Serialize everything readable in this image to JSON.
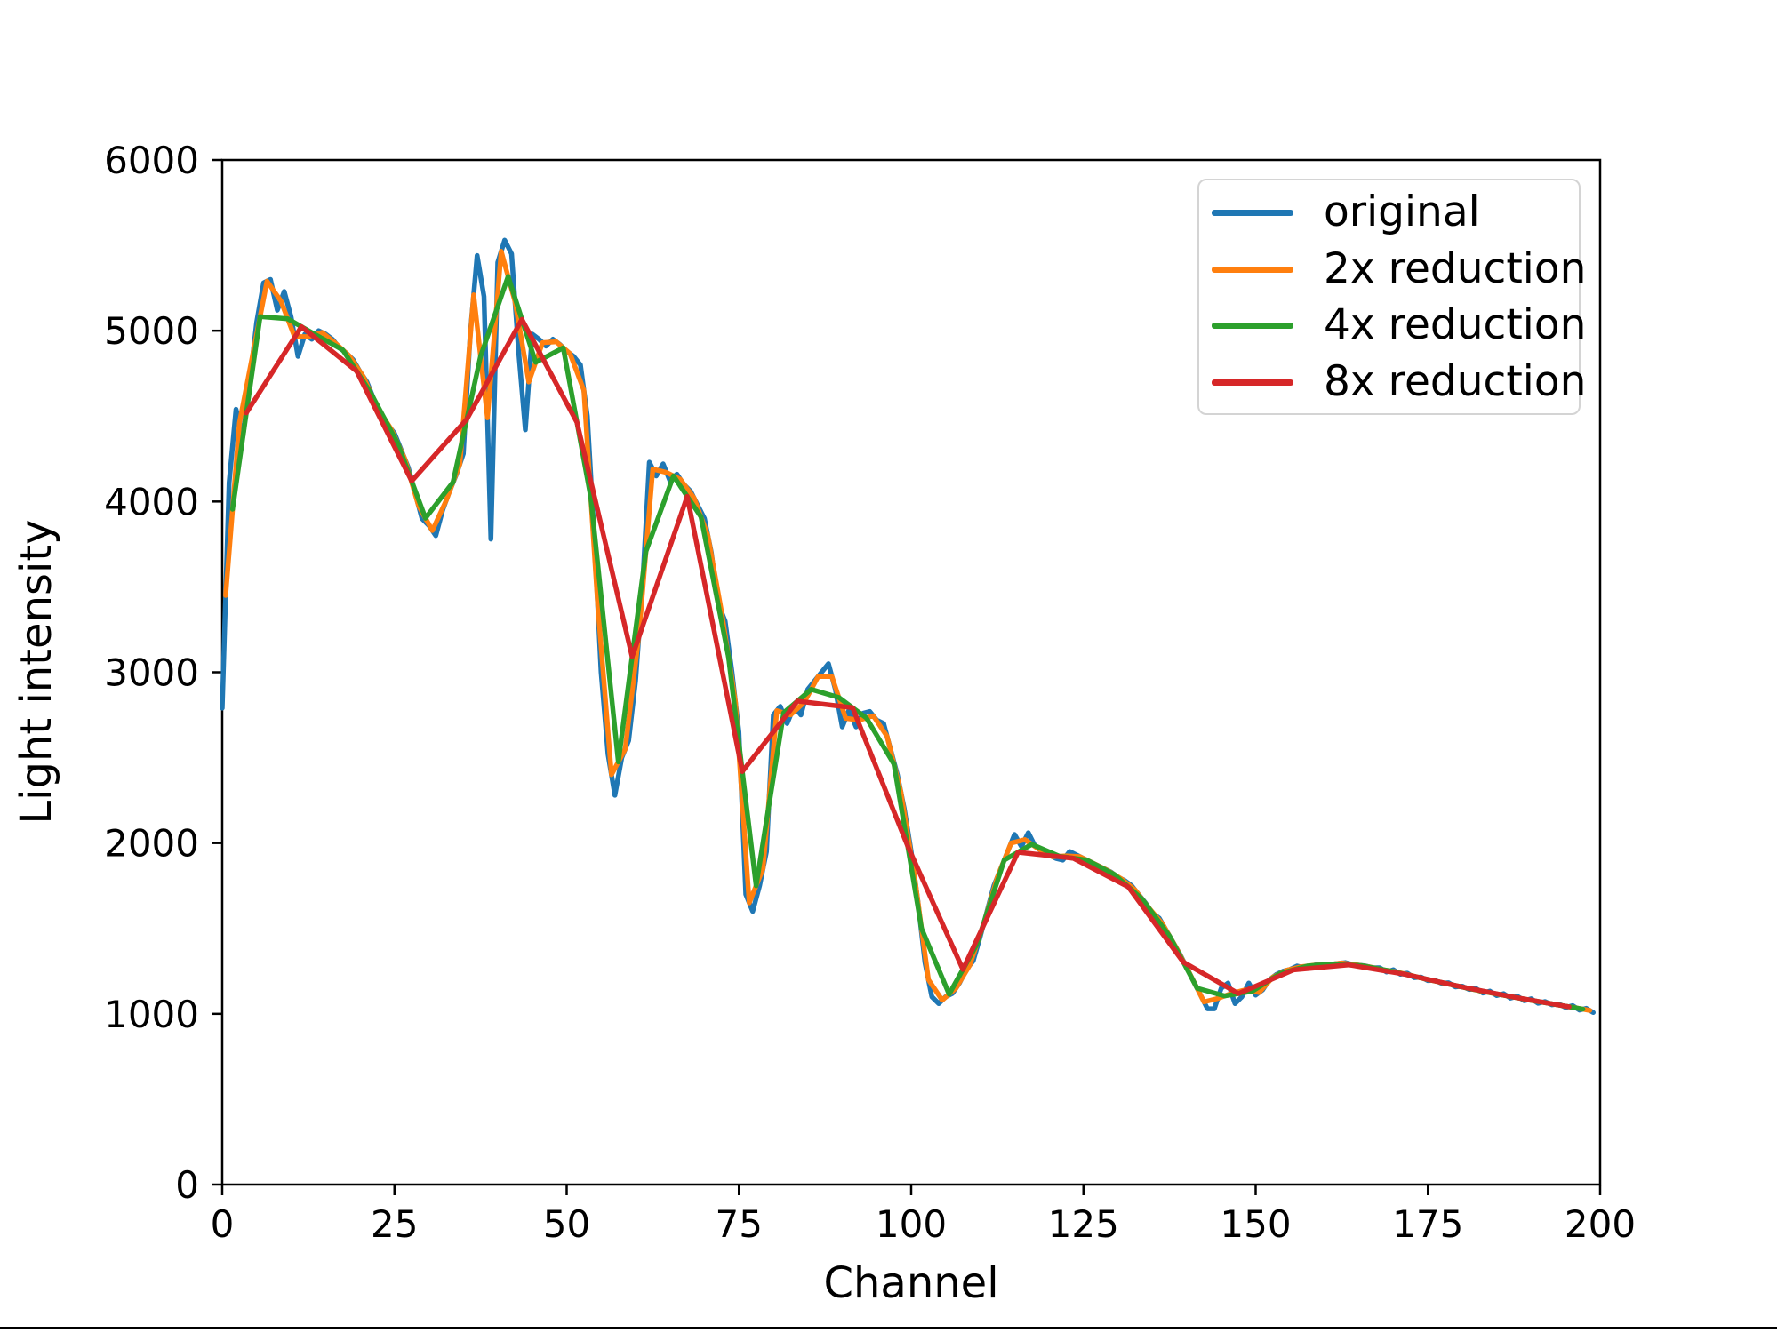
{
  "figure": {
    "background": "#ffffff"
  },
  "chart_data": {
    "type": "line",
    "title": "",
    "xlabel": "Channel",
    "ylabel": "Light intensity",
    "xlim": [
      0,
      200
    ],
    "ylim": [
      0,
      6000
    ],
    "xticks": [
      0,
      25,
      50,
      75,
      100,
      125,
      150,
      175,
      200
    ],
    "yticks": [
      0,
      1000,
      2000,
      3000,
      4000,
      5000,
      6000
    ],
    "grid": false,
    "legend_position": "upper right",
    "series": [
      {
        "name": "original",
        "color": "#1f77b4",
        "x_start": 0,
        "x_step": 1,
        "values": [
          2790,
          4110,
          4540,
          4380,
          4700,
          5050,
          5280,
          5300,
          5120,
          5230,
          5080,
          4850,
          4980,
          4950,
          5000,
          4980,
          4950,
          4900,
          4870,
          4830,
          4760,
          4700,
          4600,
          4500,
          4450,
          4400,
          4300,
          4200,
          4050,
          3900,
          3860,
          3800,
          3950,
          4060,
          4160,
          4280,
          4980,
          5440,
          5200,
          3780,
          5400,
          5530,
          5450,
          4890,
          4420,
          4980,
          4950,
          4910,
          4950,
          4920,
          4880,
          4850,
          4800,
          4500,
          3800,
          3000,
          2520,
          2280,
          2500,
          2600,
          2950,
          3500,
          4230,
          4150,
          4220,
          4120,
          4160,
          4100,
          4060,
          3980,
          3900,
          3700,
          3400,
          3300,
          3000,
          2650,
          1700,
          1600,
          1750,
          1950,
          2750,
          2800,
          2700,
          2800,
          2750,
          2900,
          2950,
          3000,
          3050,
          2900,
          2680,
          2780,
          2680,
          2760,
          2770,
          2720,
          2700,
          2550,
          2400,
          2200,
          1950,
          1650,
          1300,
          1100,
          1060,
          1100,
          1120,
          1180,
          1260,
          1310,
          1450,
          1600,
          1750,
          1850,
          1950,
          2050,
          1980,
          2060,
          1980,
          1950,
          1930,
          1910,
          1900,
          1950,
          1930,
          1910,
          1890,
          1870,
          1850,
          1830,
          1800,
          1780,
          1750,
          1700,
          1650,
          1590,
          1560,
          1490,
          1420,
          1350,
          1270,
          1190,
          1110,
          1030,
          1030,
          1150,
          1180,
          1060,
          1100,
          1180,
          1110,
          1140,
          1200,
          1230,
          1250,
          1260,
          1280,
          1270,
          1280,
          1290,
          1285,
          1290,
          1295,
          1300,
          1290,
          1285,
          1280,
          1270,
          1270,
          1245,
          1258,
          1232,
          1238,
          1212,
          1215,
          1195,
          1196,
          1179,
          1182,
          1158,
          1162,
          1143,
          1148,
          1122,
          1133,
          1107,
          1118,
          1092,
          1103,
          1077,
          1088,
          1062,
          1072,
          1053,
          1058,
          1037,
          1048,
          1022,
          1032,
          1008
        ]
      },
      {
        "name": "2x reduction",
        "color": "#ff7f0e",
        "x_start": 0.5,
        "x_step": 2,
        "values": [
          3450,
          4460,
          4875,
          5290,
          5175,
          4965,
          4965,
          4990,
          4925,
          4850,
          4730,
          4550,
          4425,
          4250,
          3975,
          3830,
          4005,
          4220,
          5210,
          4490,
          5465,
          5170,
          4700,
          4930,
          4935,
          4865,
          4650,
          3400,
          2400,
          2550,
          3225,
          4190,
          4170,
          4130,
          4020,
          3800,
          3350,
          2825,
          1650,
          1850,
          2775,
          2750,
          2825,
          2975,
          2975,
          2730,
          2720,
          2745,
          2625,
          2300,
          1800,
          1200,
          1080,
          1150,
          1285,
          1525,
          1800,
          2000,
          2020,
          1965,
          1920,
          1925,
          1920,
          1880,
          1840,
          1790,
          1725,
          1620,
          1525,
          1385,
          1230,
          1070,
          1090,
          1120,
          1140,
          1125,
          1215,
          1255,
          1275,
          1285,
          1287.5,
          1297.5,
          1287.5,
          1275,
          1257.5,
          1245,
          1225,
          1205,
          1187.5,
          1170,
          1152.5,
          1135,
          1120,
          1105,
          1090,
          1075,
          1062.5,
          1047.5,
          1035,
          1020
        ]
      },
      {
        "name": "4x reduction",
        "color": "#2ca02c",
        "x_start": 1.5,
        "x_step": 4,
        "values": [
          3955,
          5082.5,
          5070,
          4977.5,
          4887.5,
          4640,
          4337.5,
          3902.5,
          4112.5,
          4850,
          5317.5,
          4815,
          4900,
          4025,
          2475,
          3707.5,
          4150,
          3910,
          3087.5,
          1750,
          2762.5,
          2900,
          2852.5,
          2732.5,
          2462.5,
          1500,
          1115,
          1405,
          1900,
          1992.5,
          1922.5,
          1900,
          1815,
          1672.5,
          1455,
          1150,
          1105,
          1132.5,
          1235,
          1280,
          1292.5,
          1281.25,
          1251.25,
          1215,
          1178.75,
          1143.75,
          1112.5,
          1082.5,
          1055,
          1027.5
        ]
      },
      {
        "name": "8x reduction",
        "color": "#d62728",
        "x_start": 3.5,
        "x_step": 8,
        "values": [
          4518.75,
          5023.75,
          4763.75,
          4120,
          4481.25,
          5066.25,
          4462.5,
          3091.25,
          4030,
          2418.75,
          2831.25,
          2792.5,
          1981.25,
          1260,
          1946.25,
          1911.25,
          1743.75,
          1302.5,
          1118.75,
          1257.5,
          1286.875,
          1233.125,
          1161.25,
          1097.5,
          1041.25
        ]
      }
    ]
  }
}
